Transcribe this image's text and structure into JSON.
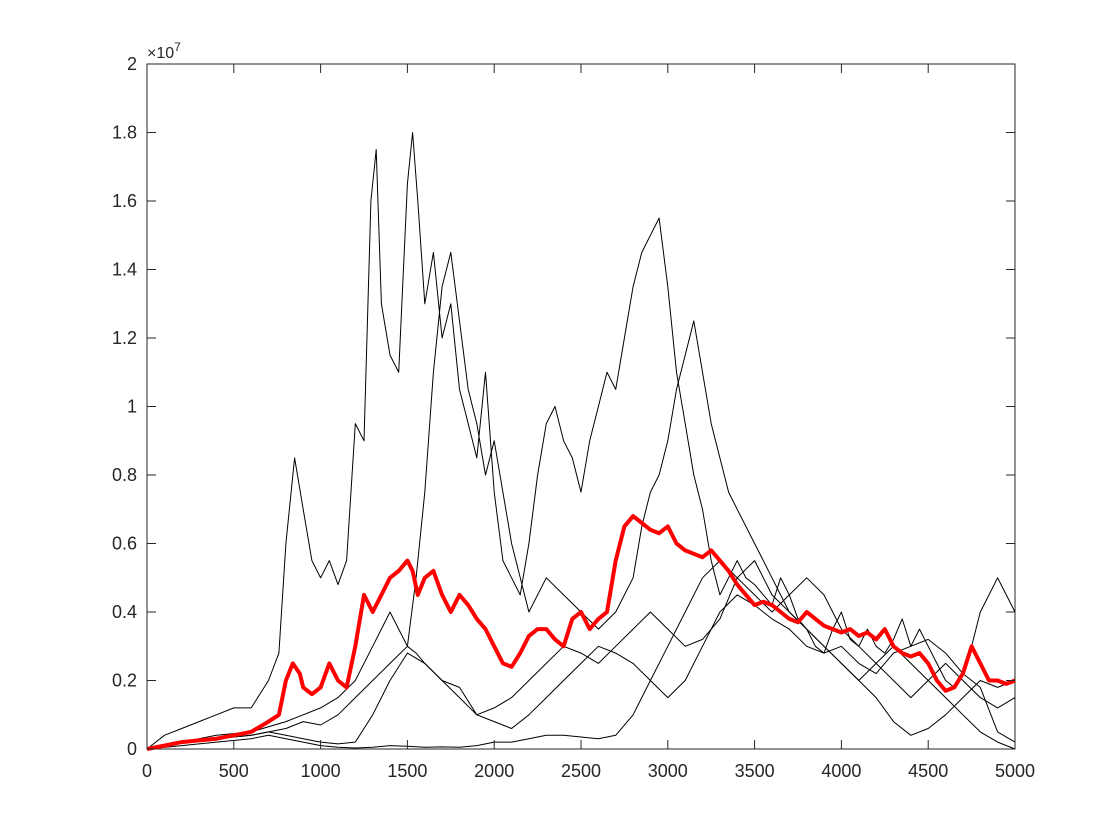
{
  "chart_data": {
    "type": "line",
    "title": "",
    "xlabel": "",
    "ylabel": "",
    "xlim": [
      0,
      5000
    ],
    "ylim": [
      0,
      2
    ],
    "y_multiplier_label": "×10",
    "y_multiplier_exponent": "7",
    "x_ticks": [
      0,
      500,
      1000,
      1500,
      2000,
      2500,
      3000,
      3500,
      4000,
      4500,
      5000
    ],
    "y_ticks": [
      0,
      0.2,
      0.4,
      0.6,
      0.8,
      1,
      1.2,
      1.4,
      1.6,
      1.8,
      2
    ],
    "x_tick_labels": [
      "0",
      "500",
      "1000",
      "1500",
      "2000",
      "2500",
      "3000",
      "3500",
      "4000",
      "4500",
      "5000"
    ],
    "y_tick_labels": [
      "0",
      "0.2",
      "0.4",
      "0.6",
      "0.8",
      "1",
      "1.2",
      "1.4",
      "1.6",
      "1.8",
      "2"
    ],
    "grid": false,
    "legend": "none",
    "series": [
      {
        "color": "#000000",
        "x": [
          0,
          100,
          200,
          300,
          400,
          500,
          600,
          700,
          760,
          800,
          850,
          900,
          950,
          1000,
          1050,
          1100,
          1150,
          1200,
          1250,
          1290,
          1320,
          1350,
          1400,
          1450,
          1500,
          1530,
          1560,
          1600,
          1650,
          1700,
          1750,
          1800,
          1850,
          1900,
          1950,
          2000,
          2050,
          2100,
          2150,
          2200,
          2250,
          2300,
          2350,
          2400,
          2450,
          2500,
          2550,
          2600,
          2650,
          2700,
          2750,
          2800,
          2850,
          2900,
          2950,
          3000,
          3050,
          3100,
          3150,
          3200,
          3250,
          3300,
          3350,
          3400,
          3450,
          3500,
          3550,
          3600,
          3650,
          3700,
          3750,
          3800,
          3850,
          3900,
          3950,
          4000,
          4050,
          4100,
          4150,
          4200,
          4250,
          4300,
          4350,
          4400,
          4450,
          4500,
          4550,
          4600,
          4650,
          4700,
          4750,
          4800,
          4850,
          4900,
          4950,
          5000
        ],
        "y": [
          0,
          0.04,
          0.06,
          0.08,
          0.1,
          0.12,
          0.12,
          0.2,
          0.28,
          0.6,
          0.85,
          0.7,
          0.55,
          0.5,
          0.55,
          0.48,
          0.55,
          0.95,
          0.9,
          1.6,
          1.75,
          1.3,
          1.15,
          1.1,
          1.65,
          1.8,
          1.6,
          1.3,
          1.45,
          1.2,
          1.3,
          1.05,
          0.95,
          0.85,
          1.1,
          0.75,
          0.55,
          0.5,
          0.45,
          0.6,
          0.8,
          0.95,
          1.0,
          0.9,
          0.85,
          0.75,
          0.9,
          1.0,
          1.1,
          1.05,
          1.2,
          1.35,
          1.45,
          1.5,
          1.55,
          1.35,
          1.1,
          0.95,
          0.8,
          0.7,
          0.55,
          0.45,
          0.5,
          0.55,
          0.5,
          0.48,
          0.45,
          0.42,
          0.5,
          0.45,
          0.38,
          0.35,
          0.3,
          0.28,
          0.35,
          0.4,
          0.32,
          0.3,
          0.35,
          0.3,
          0.28,
          0.32,
          0.38,
          0.3,
          0.35,
          0.3,
          0.25,
          0.2,
          0.18,
          0.22,
          0.3,
          0.4,
          0.45,
          0.5,
          0.45,
          0.4
        ]
      },
      {
        "color": "#000000",
        "x": [
          0,
          200,
          400,
          600,
          800,
          900,
          1000,
          1100,
          1200,
          1300,
          1400,
          1450,
          1500,
          1550,
          1600,
          1650,
          1700,
          1750,
          1800,
          1850,
          1900,
          1950,
          2000,
          2100,
          2200,
          2300,
          2400,
          2500,
          2600,
          2700,
          2800,
          2850,
          2900,
          2950,
          3000,
          3050,
          3100,
          3150,
          3200,
          3250,
          3300,
          3350,
          3400,
          3450,
          3500,
          3550,
          3600,
          3650,
          3700,
          3800,
          3900,
          4000,
          4100,
          4200,
          4300,
          4400,
          4500,
          4600,
          4700,
          4800,
          4900,
          5000
        ],
        "y": [
          0,
          0.02,
          0.04,
          0.05,
          0.08,
          0.1,
          0.12,
          0.15,
          0.2,
          0.3,
          0.4,
          0.35,
          0.3,
          0.5,
          0.75,
          1.1,
          1.35,
          1.45,
          1.25,
          1.05,
          0.95,
          0.8,
          0.9,
          0.6,
          0.4,
          0.5,
          0.45,
          0.4,
          0.35,
          0.4,
          0.5,
          0.65,
          0.75,
          0.8,
          0.9,
          1.05,
          1.15,
          1.25,
          1.1,
          0.95,
          0.85,
          0.75,
          0.7,
          0.65,
          0.6,
          0.55,
          0.5,
          0.45,
          0.4,
          0.35,
          0.3,
          0.25,
          0.2,
          0.25,
          0.3,
          0.25,
          0.2,
          0.15,
          0.1,
          0.05,
          0.02,
          0.0
        ]
      },
      {
        "color": "#000000",
        "x": [
          0,
          200,
          400,
          600,
          800,
          900,
          1000,
          1100,
          1200,
          1300,
          1400,
          1500,
          1550,
          1600,
          1700,
          1800,
          1900,
          2000,
          2100,
          2200,
          2300,
          2400,
          2500,
          2600,
          2700,
          2800,
          2900,
          3000,
          3100,
          3200,
          3300,
          3400,
          3500,
          3600,
          3700,
          3800,
          3900,
          4000,
          4100,
          4200,
          4300,
          4400,
          4500,
          4600,
          4700,
          4800,
          4900,
          5000
        ],
        "y": [
          0,
          0.02,
          0.03,
          0.04,
          0.06,
          0.08,
          0.07,
          0.1,
          0.15,
          0.2,
          0.25,
          0.3,
          0.28,
          0.25,
          0.2,
          0.15,
          0.1,
          0.12,
          0.15,
          0.2,
          0.25,
          0.3,
          0.28,
          0.25,
          0.3,
          0.35,
          0.4,
          0.35,
          0.3,
          0.32,
          0.38,
          0.5,
          0.55,
          0.45,
          0.4,
          0.35,
          0.3,
          0.25,
          0.2,
          0.15,
          0.08,
          0.04,
          0.06,
          0.1,
          0.15,
          0.2,
          0.18,
          0.2
        ]
      },
      {
        "color": "#000000",
        "x": [
          0,
          200,
          400,
          600,
          700,
          800,
          900,
          1000,
          1100,
          1200,
          1300,
          1400,
          1500,
          1600,
          1700,
          1800,
          1900,
          2000,
          2100,
          2200,
          2300,
          2400,
          2500,
          2600,
          2700,
          2800,
          2900,
          3000,
          3100,
          3200,
          3300,
          3400,
          3500,
          3600,
          3700,
          3800,
          3900,
          4000,
          4100,
          4200,
          4300,
          4400,
          4500,
          4600,
          4700,
          4800,
          4900,
          5000
        ],
        "y": [
          0,
          0.01,
          0.02,
          0.03,
          0.04,
          0.03,
          0.02,
          0.01,
          0.005,
          0.003,
          0.005,
          0.01,
          0.008,
          0.005,
          0.006,
          0.005,
          0.01,
          0.02,
          0.02,
          0.03,
          0.04,
          0.04,
          0.035,
          0.03,
          0.04,
          0.1,
          0.2,
          0.3,
          0.4,
          0.5,
          0.55,
          0.5,
          0.45,
          0.4,
          0.45,
          0.5,
          0.45,
          0.35,
          0.3,
          0.25,
          0.2,
          0.15,
          0.2,
          0.25,
          0.2,
          0.15,
          0.12,
          0.15
        ]
      },
      {
        "color": "#000000",
        "x": [
          0,
          200,
          400,
          600,
          700,
          800,
          900,
          1000,
          1100,
          1200,
          1300,
          1400,
          1500,
          1600,
          1700,
          1800,
          1900,
          2000,
          2100,
          2200,
          2300,
          2400,
          2500,
          2600,
          2700,
          2800,
          2900,
          3000,
          3100,
          3200,
          3300,
          3400,
          3500,
          3600,
          3700,
          3800,
          3900,
          4000,
          4100,
          4200,
          4300,
          4400,
          4500,
          4600,
          4700,
          4800,
          4900,
          5000
        ],
        "y": [
          0,
          0.02,
          0.03,
          0.04,
          0.05,
          0.04,
          0.03,
          0.02,
          0.015,
          0.02,
          0.1,
          0.2,
          0.28,
          0.25,
          0.2,
          0.18,
          0.1,
          0.08,
          0.06,
          0.1,
          0.15,
          0.2,
          0.25,
          0.3,
          0.28,
          0.25,
          0.2,
          0.15,
          0.2,
          0.3,
          0.4,
          0.45,
          0.42,
          0.38,
          0.35,
          0.3,
          0.28,
          0.3,
          0.25,
          0.22,
          0.28,
          0.3,
          0.32,
          0.28,
          0.22,
          0.18,
          0.05,
          0.02
        ]
      },
      {
        "color": "#ff0000",
        "x": [
          0,
          100,
          200,
          300,
          400,
          500,
          600,
          700,
          760,
          800,
          840,
          880,
          900,
          950,
          1000,
          1050,
          1100,
          1150,
          1200,
          1250,
          1300,
          1350,
          1400,
          1450,
          1500,
          1530,
          1560,
          1600,
          1650,
          1700,
          1750,
          1800,
          1850,
          1900,
          1950,
          2000,
          2050,
          2100,
          2150,
          2200,
          2250,
          2300,
          2350,
          2400,
          2450,
          2500,
          2550,
          2600,
          2650,
          2700,
          2750,
          2800,
          2850,
          2900,
          2950,
          3000,
          3050,
          3100,
          3150,
          3200,
          3250,
          3300,
          3350,
          3400,
          3450,
          3500,
          3550,
          3600,
          3650,
          3700,
          3750,
          3800,
          3850,
          3900,
          3950,
          4000,
          4050,
          4100,
          4150,
          4200,
          4250,
          4300,
          4350,
          4400,
          4450,
          4500,
          4550,
          4600,
          4650,
          4700,
          4750,
          4800,
          4850,
          4900,
          4950,
          5000
        ],
        "y": [
          0,
          0.01,
          0.02,
          0.025,
          0.03,
          0.04,
          0.05,
          0.08,
          0.1,
          0.2,
          0.25,
          0.22,
          0.18,
          0.16,
          0.18,
          0.25,
          0.2,
          0.18,
          0.3,
          0.45,
          0.4,
          0.45,
          0.5,
          0.52,
          0.55,
          0.52,
          0.45,
          0.5,
          0.52,
          0.45,
          0.4,
          0.45,
          0.42,
          0.38,
          0.35,
          0.3,
          0.25,
          0.24,
          0.28,
          0.33,
          0.35,
          0.35,
          0.32,
          0.3,
          0.38,
          0.4,
          0.35,
          0.38,
          0.4,
          0.55,
          0.65,
          0.68,
          0.66,
          0.64,
          0.63,
          0.65,
          0.6,
          0.58,
          0.57,
          0.56,
          0.58,
          0.55,
          0.52,
          0.48,
          0.45,
          0.42,
          0.43,
          0.42,
          0.4,
          0.38,
          0.37,
          0.4,
          0.38,
          0.36,
          0.35,
          0.34,
          0.35,
          0.33,
          0.34,
          0.32,
          0.35,
          0.3,
          0.28,
          0.27,
          0.28,
          0.25,
          0.2,
          0.17,
          0.18,
          0.22,
          0.3,
          0.25,
          0.2,
          0.2,
          0.19,
          0.2
        ]
      }
    ]
  }
}
